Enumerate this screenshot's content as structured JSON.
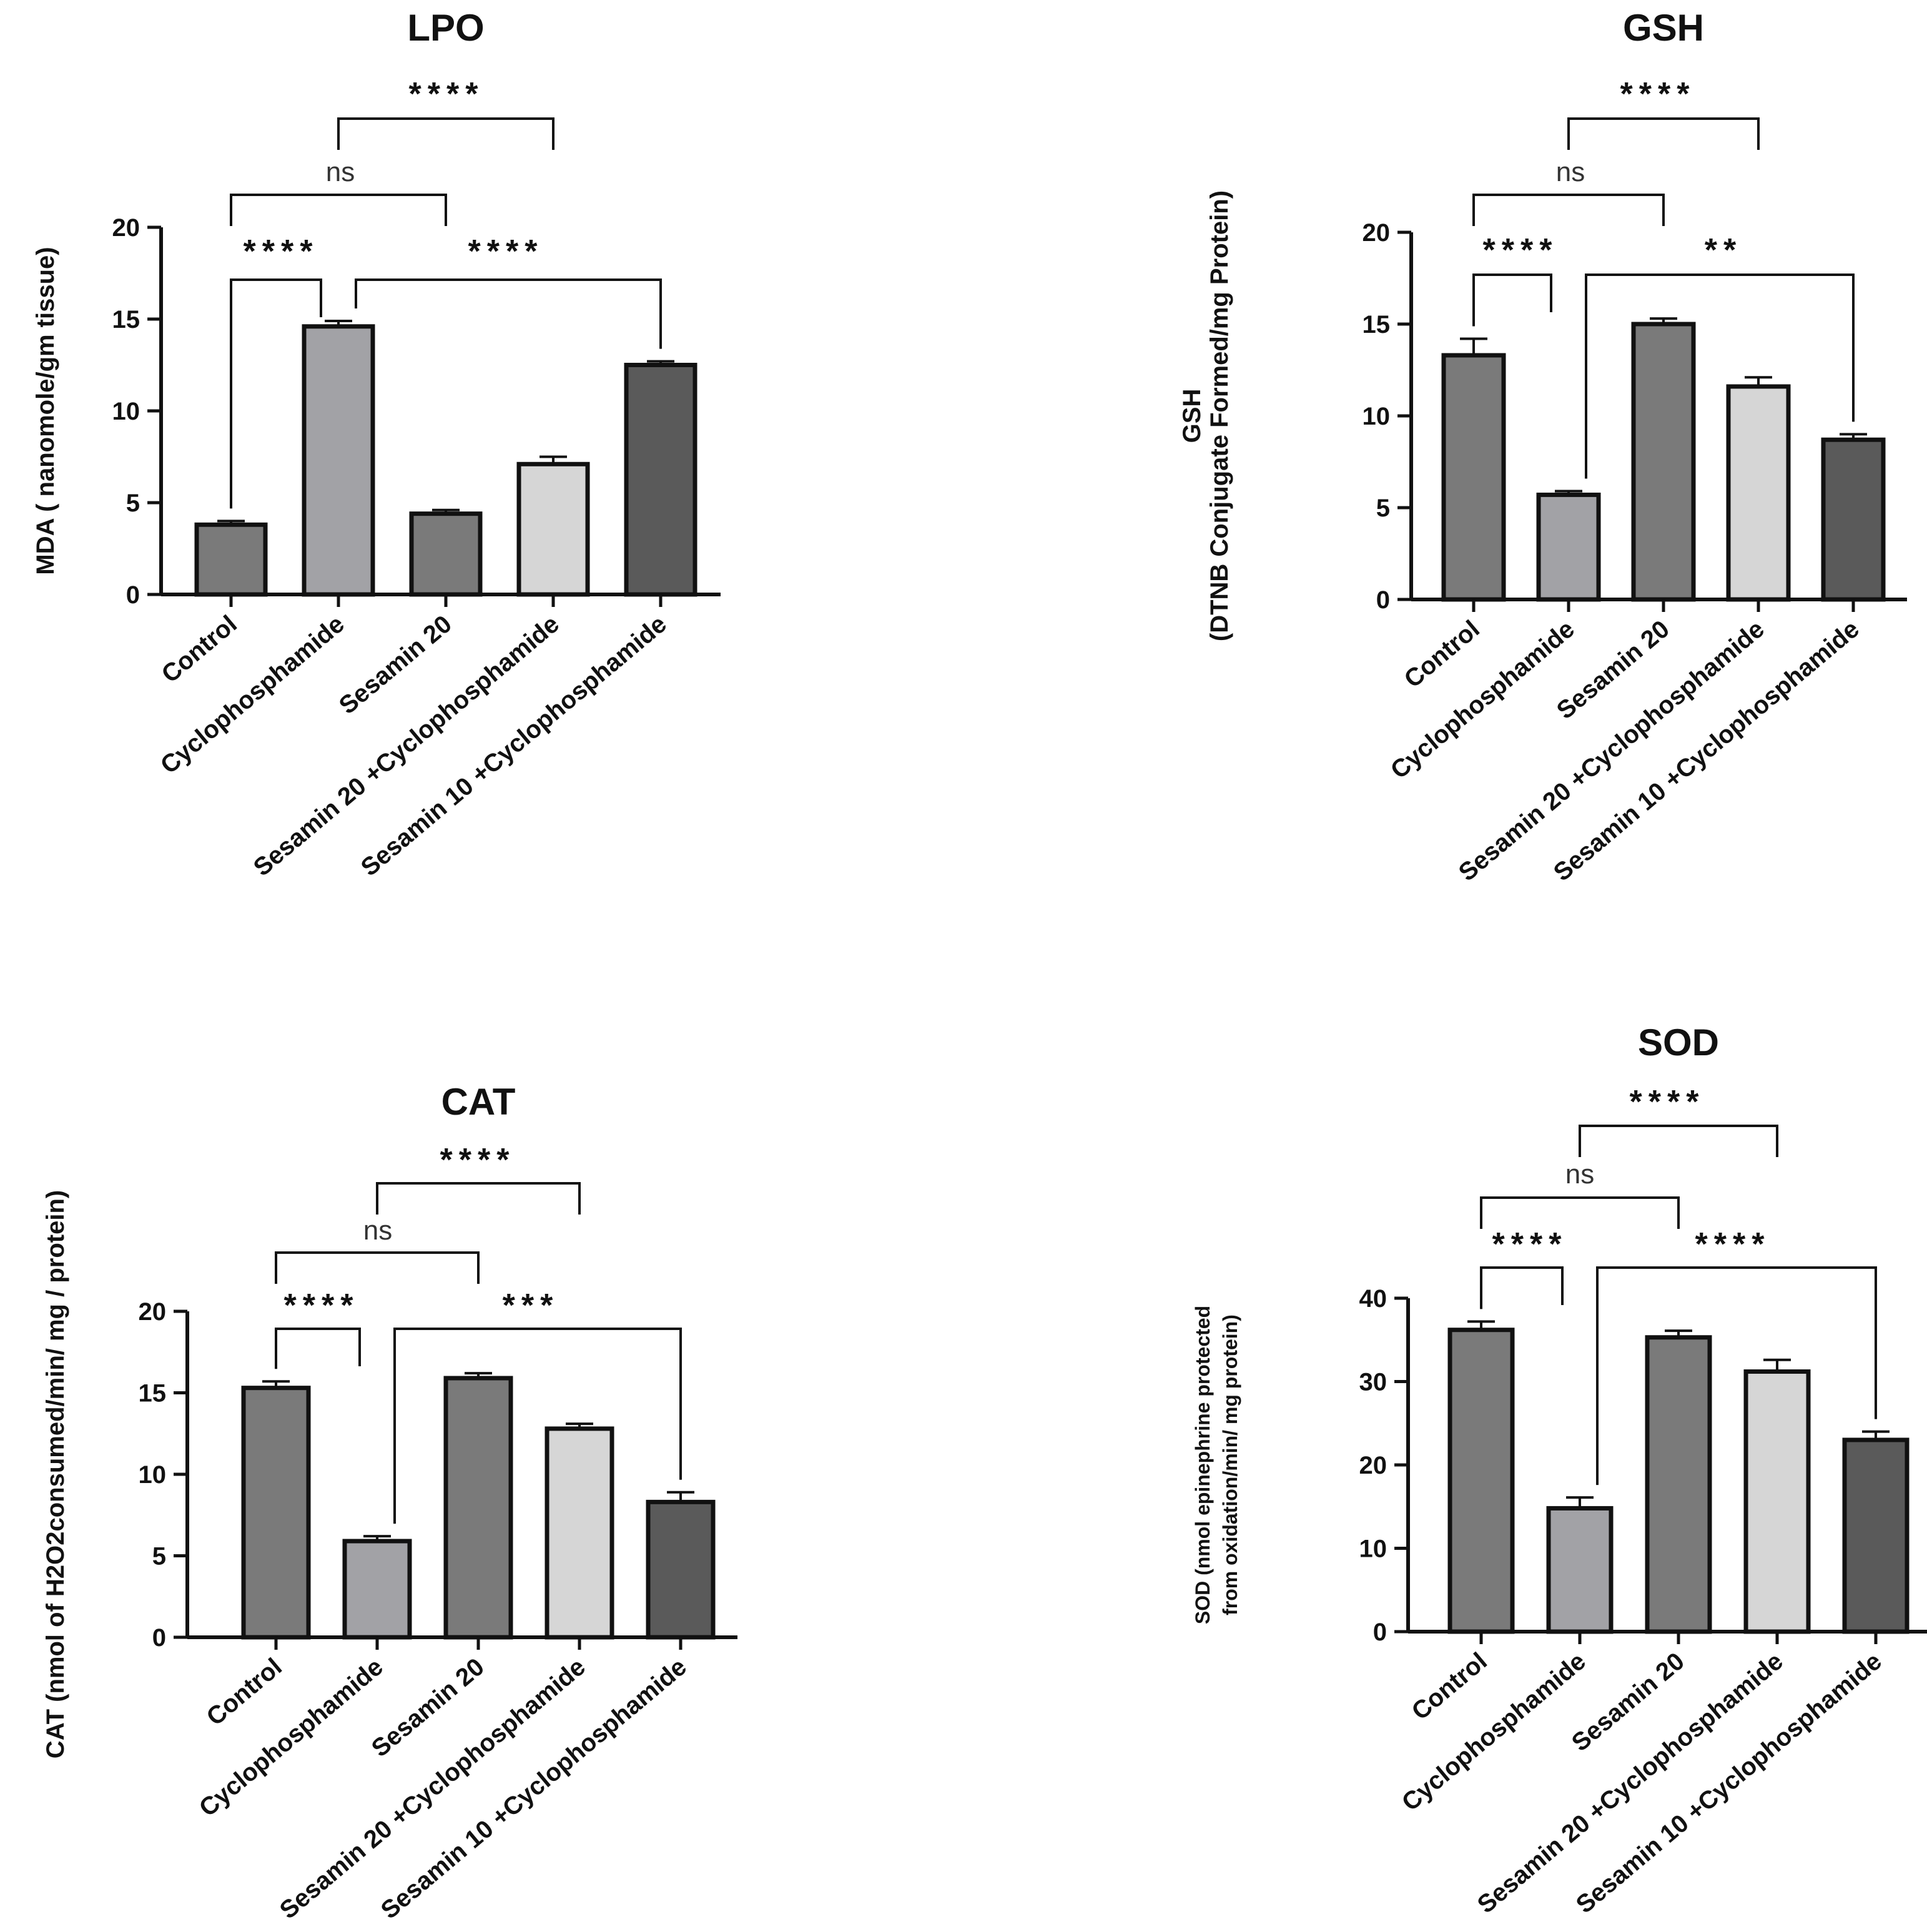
{
  "chart_data": [
    {
      "type": "bar",
      "title": "LPO",
      "ylabel": [
        "MDA ( nanomole/gm tissue)"
      ],
      "ylim": [
        0,
        20
      ],
      "yticks": [
        0,
        5,
        10,
        15,
        20
      ],
      "categories": [
        "Control",
        "Cyclophosphamide",
        "Sesamin 20",
        "Sesamin 20 +Cyclophosphamide",
        "Sesamin 10 +Cyclophosphamide"
      ],
      "values": [
        3.8,
        14.6,
        4.4,
        7.1,
        12.5
      ],
      "errors": [
        0.2,
        0.3,
        0.2,
        0.4,
        0.2
      ],
      "colors": [
        "#7a7a7a",
        "#a2a2a6",
        "#7a7a7a",
        "#d6d6d6",
        "#5a5a5a"
      ],
      "comparisons": [
        {
          "label": "****",
          "from": 0,
          "to": 1
        },
        {
          "label": "****",
          "from": 1,
          "to": 4
        },
        {
          "label": "ns",
          "from": 0,
          "to": 2
        },
        {
          "label": "****",
          "from": 1,
          "to": 3
        }
      ]
    },
    {
      "type": "bar",
      "title": "GSH",
      "ylabel": [
        "GSH",
        "(DTNB Conjugate Formed/mg Protein)"
      ],
      "ylim": [
        0,
        20
      ],
      "yticks": [
        0,
        5,
        10,
        15,
        20
      ],
      "categories": [
        "Control",
        "Cyclophosphamide",
        "Sesamin 20",
        "Sesamin 20 +Cyclophosphamide",
        "Sesamin 10 +Cyclophosphamide"
      ],
      "values": [
        13.3,
        5.7,
        15.0,
        11.6,
        8.7
      ],
      "errors": [
        0.9,
        0.2,
        0.3,
        0.5,
        0.3
      ],
      "colors": [
        "#7a7a7a",
        "#a2a2a6",
        "#7a7a7a",
        "#d6d6d6",
        "#5a5a5a"
      ],
      "comparisons": [
        {
          "label": "****",
          "from": 0,
          "to": 1
        },
        {
          "label": "**",
          "from": 1,
          "to": 4
        },
        {
          "label": "ns",
          "from": 0,
          "to": 2
        },
        {
          "label": "****",
          "from": 1,
          "to": 3
        }
      ]
    },
    {
      "type": "bar",
      "title": "CAT",
      "ylabel": [
        "CAT (nmol of H2O2consumed/min/ mg / protein)"
      ],
      "ylim": [
        0,
        20
      ],
      "yticks": [
        0,
        5,
        10,
        15,
        20
      ],
      "categories": [
        "Control",
        "Cyclophosphamide",
        "Sesamin 20",
        "Sesamin 20 +Cyclophosphamide",
        "Sesamin 10 +Cyclophosphamide"
      ],
      "values": [
        15.3,
        5.9,
        15.9,
        12.8,
        8.3
      ],
      "errors": [
        0.4,
        0.3,
        0.3,
        0.3,
        0.6
      ],
      "colors": [
        "#7a7a7a",
        "#a2a2a6",
        "#7a7a7a",
        "#d6d6d6",
        "#5a5a5a"
      ],
      "comparisons": [
        {
          "label": "****",
          "from": 0,
          "to": 1
        },
        {
          "label": "***",
          "from": 1,
          "to": 4
        },
        {
          "label": "ns",
          "from": 0,
          "to": 2
        },
        {
          "label": "****",
          "from": 1,
          "to": 3
        }
      ]
    },
    {
      "type": "bar",
      "title": "SOD",
      "ylabel": [
        "SOD (nmol epinephrine protected",
        "from oxidation/min/ mg protein)"
      ],
      "ylim": [
        0,
        40
      ],
      "yticks": [
        0,
        10,
        20,
        30,
        40
      ],
      "categories": [
        "Control",
        "Cyclophosphamide",
        "Sesamin 20",
        "Sesamin 20 +Cyclophosphamide",
        "Sesamin 10 +Cyclophosphamide"
      ],
      "values": [
        36.2,
        14.8,
        35.3,
        31.2,
        23.0
      ],
      "errors": [
        1.0,
        1.3,
        0.8,
        1.4,
        1.0
      ],
      "colors": [
        "#7a7a7a",
        "#a2a2a6",
        "#7a7a7a",
        "#d6d6d6",
        "#5a5a5a"
      ],
      "comparisons": [
        {
          "label": "****",
          "from": 0,
          "to": 1
        },
        {
          "label": "****",
          "from": 1,
          "to": 4
        },
        {
          "label": "ns",
          "from": 0,
          "to": 2
        },
        {
          "label": "****",
          "from": 1,
          "to": 3
        }
      ]
    }
  ]
}
